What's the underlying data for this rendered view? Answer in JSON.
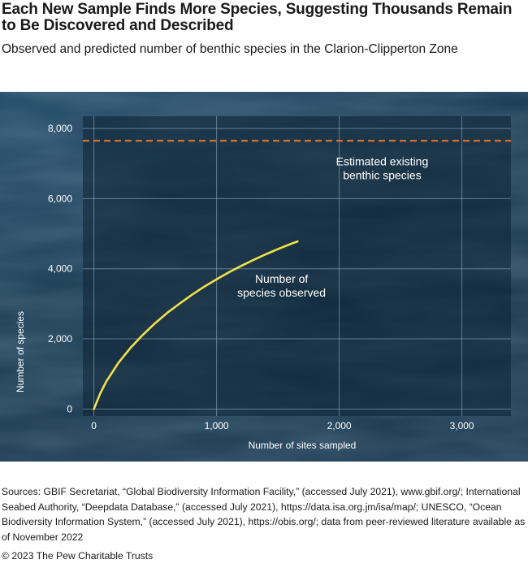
{
  "header": {
    "title": "Each New Sample Finds More Species, Suggesting Thousands Remain to Be Discovered and Described",
    "subtitle": "Observed and predicted number of benthic species in the Clarion-Clipperton Zone"
  },
  "chart_data": {
    "type": "line",
    "xlabel": "Number of sites sampled",
    "ylabel": "Number of species",
    "xlim": [
      -90,
      3400
    ],
    "ylim": [
      -200,
      8350
    ],
    "x_ticks": [
      0,
      1000,
      2000,
      3000
    ],
    "x_tick_labels": [
      "0",
      "1,000",
      "2,000",
      "3,000"
    ],
    "y_ticks": [
      0,
      2000,
      4000,
      6000,
      8000
    ],
    "y_tick_labels": [
      "0",
      "2,000",
      "4,000",
      "6,000",
      "8,000"
    ],
    "grid": true,
    "series": [
      {
        "name": "Number of species observed",
        "style": "solid",
        "color": "#f2e04a",
        "x": [
          0,
          50,
          100,
          200,
          300,
          400,
          500,
          600,
          700,
          800,
          900,
          1000,
          1100,
          1200,
          1300,
          1400,
          1500,
          1600,
          1660
        ],
        "y": [
          0,
          430,
          780,
          1320,
          1750,
          2120,
          2450,
          2750,
          3010,
          3260,
          3490,
          3700,
          3900,
          4080,
          4250,
          4410,
          4560,
          4700,
          4780
        ]
      },
      {
        "name": "Estimated existing benthic species",
        "style": "dashed",
        "color": "#ef7a2a",
        "x": [
          -90,
          3400
        ],
        "y": [
          7650,
          7650
        ]
      }
    ],
    "annotations": [
      {
        "lines": [
          "Estimated existing",
          "benthic species"
        ],
        "x": 2350,
        "y": 6950
      },
      {
        "lines": [
          "Number of",
          "species observed"
        ],
        "x": 1530,
        "y": 3600
      }
    ]
  },
  "footer": {
    "sources": "Sources: GBIF Secretariat, “Global Biodiversity Information Facility,” (accessed July 2021), www.gbif.org/; International Seabed Authority, “Deepdata Database,” (accessed July 2021), https://data.isa.org.jm/isa/map/; UNESCO, “Ocean Biodiversity Information System,” (accessed July 2021), https://obis.org/; data from peer-reviewed literature available as of November 2022",
    "copyright": "© 2023 The Pew Charitable Trusts"
  }
}
